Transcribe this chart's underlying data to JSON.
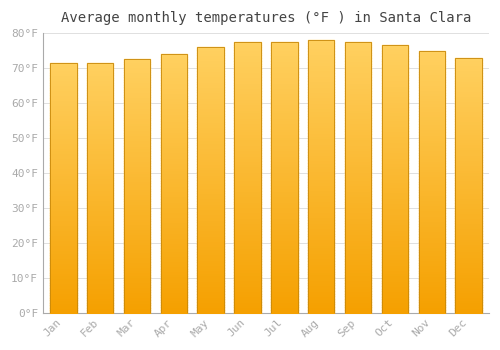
{
  "title": "Average monthly temperatures (°F ) in Santa Clara",
  "months": [
    "Jan",
    "Feb",
    "Mar",
    "Apr",
    "May",
    "Jun",
    "Jul",
    "Aug",
    "Sep",
    "Oct",
    "Nov",
    "Dec"
  ],
  "values": [
    71.5,
    71.5,
    72.5,
    74.0,
    76.0,
    77.5,
    77.5,
    78.0,
    77.5,
    76.5,
    75.0,
    73.0
  ],
  "bar_color_top": "#FFD060",
  "bar_color_bottom": "#F5A000",
  "bar_edge_color": "#C8880A",
  "background_color": "#FFFFFF",
  "grid_color": "#E0E0E0",
  "ylim": [
    0,
    80
  ],
  "yticks": [
    0,
    10,
    20,
    30,
    40,
    50,
    60,
    70,
    80
  ],
  "ytick_labels": [
    "0°F",
    "10°F",
    "20°F",
    "30°F",
    "40°F",
    "50°F",
    "60°F",
    "70°F",
    "80°F"
  ],
  "title_fontsize": 10,
  "tick_fontsize": 8,
  "tick_color": "#AAAAAA",
  "spine_color": "#AAAAAA"
}
